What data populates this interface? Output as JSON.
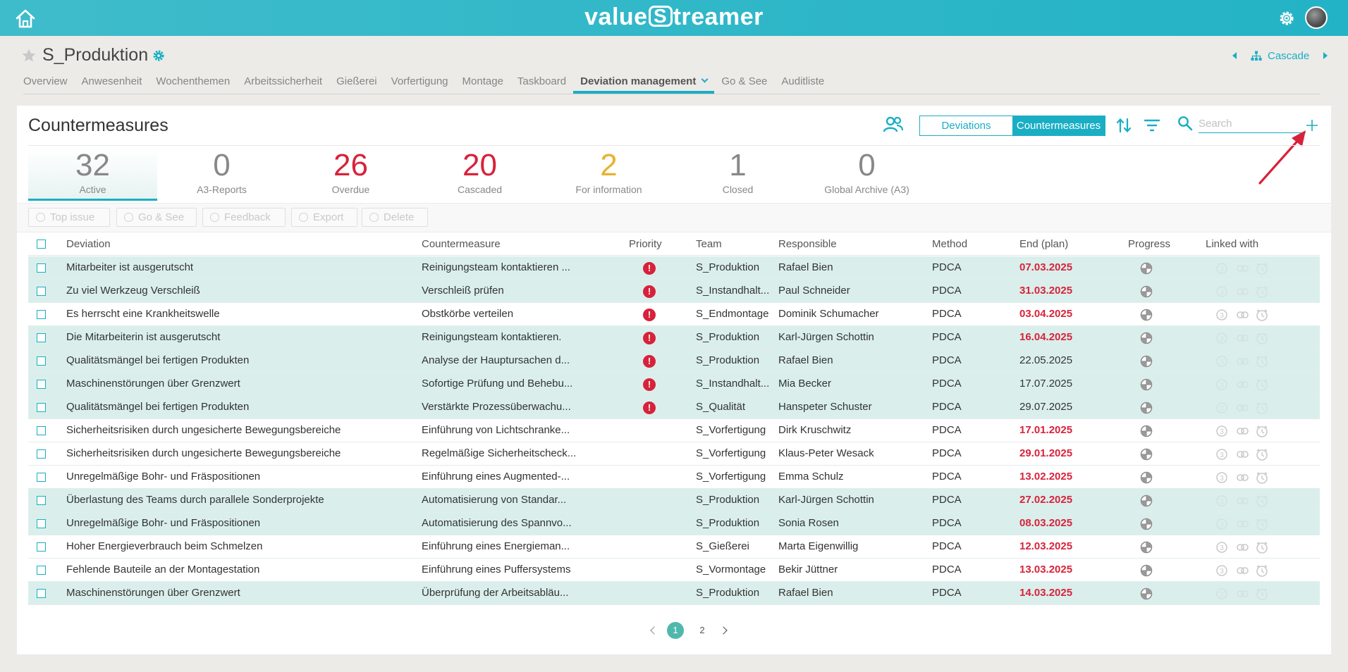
{
  "app": {
    "logo_left": "value",
    "logo_s": "S",
    "logo_right": "treamer"
  },
  "header": {
    "page_title": "S_Produktion",
    "cascade_label": "Cascade"
  },
  "tabs": [
    {
      "label": "Overview"
    },
    {
      "label": "Anwesenheit"
    },
    {
      "label": "Wochenthemen"
    },
    {
      "label": "Arbeitssicherheit"
    },
    {
      "label": "Gießerei"
    },
    {
      "label": "Vorfertigung"
    },
    {
      "label": "Montage"
    },
    {
      "label": "Taskboard"
    },
    {
      "label": "Deviation management",
      "active": true
    },
    {
      "label": "Go & See"
    },
    {
      "label": "Auditliste"
    }
  ],
  "card": {
    "title": "Countermeasures",
    "toggle": {
      "deviations": "Deviations",
      "countermeasures": "Countermeasures",
      "selected": "Countermeasures"
    },
    "search_placeholder": "Search"
  },
  "stats": [
    {
      "value": "32",
      "label": "Active",
      "color": "#888888"
    },
    {
      "value": "0",
      "label": "A3-Reports",
      "color": "#888888"
    },
    {
      "value": "26",
      "label": "Overdue",
      "color": "#d8223a"
    },
    {
      "value": "20",
      "label": "Cascaded",
      "color": "#d8223a"
    },
    {
      "value": "2",
      "label": "For information",
      "color": "#e8b230"
    },
    {
      "value": "1",
      "label": "Closed",
      "color": "#888888"
    },
    {
      "value": "0",
      "label": "Global Archive (A3)",
      "color": "#888888"
    }
  ],
  "actions": {
    "top_issue": "Top issue",
    "go_see": "Go & See",
    "feedback": "Feedback",
    "export": "Export",
    "delete": "Delete"
  },
  "columns": {
    "deviation": "Deviation",
    "countermeasure": "Countermeasure",
    "priority": "Priority",
    "team": "Team",
    "responsible": "Responsible",
    "method": "Method",
    "end_plan": "End (plan)",
    "progress": "Progress",
    "linked_with": "Linked with"
  },
  "rows": [
    {
      "deviation": "Mitarbeiter ist ausgerutscht",
      "countermeasure": "Reinigungsteam kontaktieren ...",
      "priority": true,
      "team": "S_Produktion",
      "responsible": "Rafael Bien",
      "method": "PDCA",
      "end": "07.03.2025",
      "overdue": true,
      "highlight": true
    },
    {
      "deviation": "Zu viel Werkzeug Verschleiß",
      "countermeasure": "Verschleiß prüfen",
      "priority": true,
      "team": "S_Instandhalt...",
      "responsible": "Paul Schneider",
      "method": "PDCA",
      "end": "31.03.2025",
      "overdue": true,
      "highlight": true
    },
    {
      "deviation": "Es herrscht eine Krankheitswelle",
      "countermeasure": "Obstkörbe verteilen",
      "priority": true,
      "team": "S_Endmontage",
      "responsible": "Dominik Schumacher",
      "method": "PDCA",
      "end": "03.04.2025",
      "overdue": true,
      "highlight": false
    },
    {
      "deviation": "Die Mitarbeiterin ist ausgerutscht",
      "countermeasure": "Reinigungsteam kontaktieren.",
      "priority": true,
      "team": "S_Produktion",
      "responsible": "Karl-Jürgen Schottin",
      "method": "PDCA",
      "end": "16.04.2025",
      "overdue": true,
      "highlight": true
    },
    {
      "deviation": "Qualitätsmängel bei fertigen Produkten",
      "countermeasure": "Analyse der Hauptursachen d...",
      "priority": true,
      "team": "S_Produktion",
      "responsible": "Rafael Bien",
      "method": "PDCA",
      "end": "22.05.2025",
      "overdue": false,
      "highlight": true
    },
    {
      "deviation": "Maschinenstörungen über Grenzwert",
      "countermeasure": "Sofortige Prüfung und Behebu...",
      "priority": true,
      "team": "S_Instandhalt...",
      "responsible": "Mia Becker",
      "method": "PDCA",
      "end": "17.07.2025",
      "overdue": false,
      "highlight": true
    },
    {
      "deviation": "Qualitätsmängel bei fertigen Produkten",
      "countermeasure": "Verstärkte Prozessüberwachu...",
      "priority": true,
      "team": "S_Qualität",
      "responsible": "Hanspeter Schuster",
      "method": "PDCA",
      "end": "29.07.2025",
      "overdue": false,
      "highlight": true
    },
    {
      "deviation": "Sicherheitsrisiken durch ungesicherte Bewegungsbereiche",
      "countermeasure": "Einführung von Lichtschranke...",
      "priority": false,
      "team": "S_Vorfertigung",
      "responsible": "Dirk Kruschwitz",
      "method": "PDCA",
      "end": "17.01.2025",
      "overdue": true,
      "highlight": false
    },
    {
      "deviation": "Sicherheitsrisiken durch ungesicherte Bewegungsbereiche",
      "countermeasure": "Regelmäßige Sicherheitscheck...",
      "priority": false,
      "team": "S_Vorfertigung",
      "responsible": "Klaus-Peter Wesack",
      "method": "PDCA",
      "end": "29.01.2025",
      "overdue": true,
      "highlight": false
    },
    {
      "deviation": "Unregelmäßige Bohr- und Fräspositionen",
      "countermeasure": "Einführung eines Augmented-...",
      "priority": false,
      "team": "S_Vorfertigung",
      "responsible": "Emma Schulz",
      "method": "PDCA",
      "end": "13.02.2025",
      "overdue": true,
      "highlight": false
    },
    {
      "deviation": "Überlastung des Teams durch parallele Sonderprojekte",
      "countermeasure": "Automatisierung von Standar...",
      "priority": false,
      "team": "S_Produktion",
      "responsible": "Karl-Jürgen Schottin",
      "method": "PDCA",
      "end": "27.02.2025",
      "overdue": true,
      "highlight": true
    },
    {
      "deviation": "Unregelmäßige Bohr- und Fräspositionen",
      "countermeasure": "Automatisierung des Spannvo...",
      "priority": false,
      "team": "S_Produktion",
      "responsible": "Sonia Rosen",
      "method": "PDCA",
      "end": "08.03.2025",
      "overdue": true,
      "highlight": true
    },
    {
      "deviation": "Hoher Energieverbrauch beim Schmelzen",
      "countermeasure": "Einführung eines Energieman...",
      "priority": false,
      "team": "S_Gießerei",
      "responsible": "Marta Eigenwillig",
      "method": "PDCA",
      "end": "12.03.2025",
      "overdue": true,
      "highlight": false
    },
    {
      "deviation": "Fehlende Bauteile an der Montagestation",
      "countermeasure": "Einführung eines Puffersystems",
      "priority": false,
      "team": "S_Vormontage",
      "responsible": "Bekir Jüttner",
      "method": "PDCA",
      "end": "13.03.2025",
      "overdue": true,
      "highlight": false
    },
    {
      "deviation": "Maschinenstörungen über Grenzwert",
      "countermeasure": "Überprüfung der Arbeitsabläu...",
      "priority": false,
      "team": "S_Produktion",
      "responsible": "Rafael Bien",
      "method": "PDCA",
      "end": "14.03.2025",
      "overdue": true,
      "highlight": true
    }
  ],
  "pagination": {
    "pages": [
      "1",
      "2"
    ],
    "current": "1"
  },
  "colors": {
    "accent": "#1aaec4",
    "overdue": "#d8223a",
    "highlight_row": "#daefec",
    "info": "#e8b230"
  }
}
